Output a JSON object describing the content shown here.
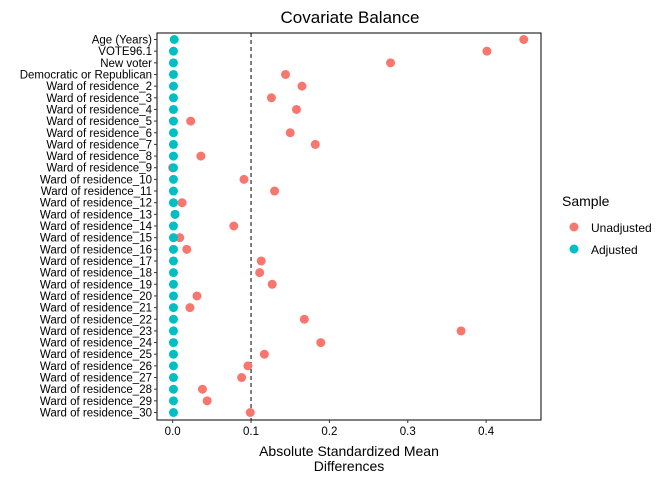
{
  "chart_data": {
    "type": "scatter",
    "title": "Covariate Balance",
    "xlabel_lines": [
      "Absolute Standardized Mean",
      "Differences"
    ],
    "ylabel": "",
    "xlim": [
      -0.02,
      0.47
    ],
    "xticks": [
      0.0,
      0.1,
      0.2,
      0.3,
      0.4
    ],
    "xtick_labels": [
      "0.0",
      "0.1",
      "0.2",
      "0.3",
      "0.4"
    ],
    "threshold": 0.1,
    "grid": false,
    "legend_position": "right",
    "legend_title": "Sample",
    "categories": [
      "Age (Years)",
      "VOTE96.1",
      "New voter",
      "Democratic or Republican",
      "Ward of residence_2",
      "Ward of residence_3",
      "Ward of residence_4",
      "Ward of residence_5",
      "Ward of residence_6",
      "Ward of residence_7",
      "Ward of residence_8",
      "Ward of residence_9",
      "Ward of residence_10",
      "Ward of residence_11",
      "Ward of residence_12",
      "Ward of residence_13",
      "Ward of residence_14",
      "Ward of residence_15",
      "Ward of residence_16",
      "Ward of residence_17",
      "Ward of residence_18",
      "Ward of residence_19",
      "Ward of residence_20",
      "Ward of residence_21",
      "Ward of residence_22",
      "Ward of residence_23",
      "Ward of residence_24",
      "Ward of residence_25",
      "Ward of residence_26",
      "Ward of residence_27",
      "Ward of residence_28",
      "Ward of residence_29",
      "Ward of residence_30"
    ],
    "series": [
      {
        "name": "Unadjusted",
        "color": "#F8766D",
        "values": [
          0.448,
          0.401,
          0.278,
          0.144,
          0.165,
          0.126,
          0.158,
          0.023,
          0.15,
          0.182,
          0.036,
          0.0,
          0.091,
          0.13,
          0.012,
          0.003,
          0.078,
          0.009,
          0.018,
          0.113,
          0.111,
          0.127,
          0.031,
          0.022,
          0.168,
          0.368,
          0.189,
          0.117,
          0.096,
          0.088,
          0.038,
          0.044,
          0.099
        ]
      },
      {
        "name": "Adjusted",
        "color": "#00BFC4",
        "values": [
          0.002,
          0.001,
          0.001,
          0.001,
          0.001,
          0.001,
          0.001,
          0.001,
          0.001,
          0.001,
          0.001,
          0.001,
          0.001,
          0.001,
          0.001,
          0.003,
          0.001,
          0.001,
          0.001,
          0.001,
          0.001,
          0.001,
          0.001,
          0.001,
          0.001,
          0.001,
          0.001,
          0.001,
          0.001,
          0.001,
          0.001,
          0.001,
          0.001
        ]
      }
    ]
  }
}
